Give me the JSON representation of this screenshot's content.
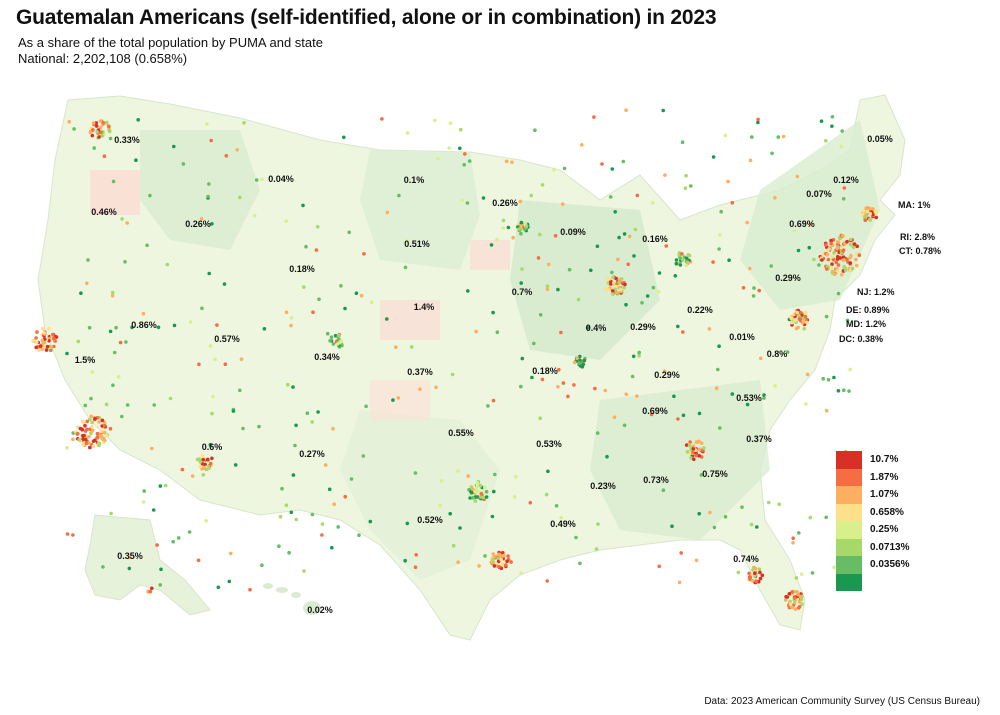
{
  "header": {
    "title": "Guatemalan Americans (self-identified, alone or in combination) in 2023",
    "subtitle": "As a share of the total population by PUMA and state",
    "national": "National: 2,202,108 (0.658%)"
  },
  "legend": {
    "items": [
      {
        "label": "10.7%",
        "color": "#d73027"
      },
      {
        "label": "1.87%",
        "color": "#f46d43"
      },
      {
        "label": "1.07%",
        "color": "#fdae61"
      },
      {
        "label": "0.658%",
        "color": "#fee08b"
      },
      {
        "label": "0.25%",
        "color": "#d9ef8b"
      },
      {
        "label": "0.0713%",
        "color": "#a6d96a"
      },
      {
        "label": "0.0356%",
        "color": "#66bd63"
      },
      {
        "label": "",
        "color": "#1a9850"
      }
    ]
  },
  "states": [
    {
      "abbr": "WA",
      "text": "0.33%"
    },
    {
      "abbr": "OR",
      "text": "0.46%"
    },
    {
      "abbr": "CA",
      "text": "1.5%"
    },
    {
      "abbr": "NV",
      "text": "0.86%"
    },
    {
      "abbr": "ID",
      "text": "0.26%"
    },
    {
      "abbr": "MT",
      "text": "0.04%"
    },
    {
      "abbr": "WY",
      "text": "0.18%"
    },
    {
      "abbr": "UT",
      "text": "0.57%"
    },
    {
      "abbr": "AZ",
      "text": "0.6%"
    },
    {
      "abbr": "CO",
      "text": "0.34%"
    },
    {
      "abbr": "NM",
      "text": "0.27%"
    },
    {
      "abbr": "ND",
      "text": "0.1%"
    },
    {
      "abbr": "SD",
      "text": "0.51%"
    },
    {
      "abbr": "NE",
      "text": "1.4%"
    },
    {
      "abbr": "KS",
      "text": "0.37%"
    },
    {
      "abbr": "OK",
      "text": "0.55%"
    },
    {
      "abbr": "TX",
      "text": "0.52%"
    },
    {
      "abbr": "MN",
      "text": "0.26%"
    },
    {
      "abbr": "IA",
      "text": "0.7%"
    },
    {
      "abbr": "MO",
      "text": "0.18%"
    },
    {
      "abbr": "AR",
      "text": "0.53%"
    },
    {
      "abbr": "LA",
      "text": "0.49%"
    },
    {
      "abbr": "WI",
      "text": "0.09%"
    },
    {
      "abbr": "IL",
      "text": "0.4%"
    },
    {
      "abbr": "MI",
      "text": "0.16%"
    },
    {
      "abbr": "IN",
      "text": "0.29%"
    },
    {
      "abbr": "OH",
      "text": "0.22%"
    },
    {
      "abbr": "KY",
      "text": "0.29%"
    },
    {
      "abbr": "TN",
      "text": "0.69%"
    },
    {
      "abbr": "MS",
      "text": "0.23%"
    },
    {
      "abbr": "AL",
      "text": "0.73%"
    },
    {
      "abbr": "GA",
      "text": "0.75%"
    },
    {
      "abbr": "FL",
      "text": "0.74%"
    },
    {
      "abbr": "SC",
      "text": "0.37%"
    },
    {
      "abbr": "NC",
      "text": "0.53%"
    },
    {
      "abbr": "VA",
      "text": "0.8%"
    },
    {
      "abbr": "WV",
      "text": "0.01%"
    },
    {
      "abbr": "PA",
      "text": "0.29%"
    },
    {
      "abbr": "NY",
      "text": "0.69%"
    },
    {
      "abbr": "VT",
      "text": "0.07%"
    },
    {
      "abbr": "NH",
      "text": "0.12%"
    },
    {
      "abbr": "ME",
      "text": "0.05%"
    },
    {
      "abbr": "AK",
      "text": "0.35%"
    },
    {
      "abbr": "HI",
      "text": "0.02%"
    },
    {
      "abbr": "MA",
      "text": "MA: 1%"
    },
    {
      "abbr": "RI",
      "text": "RI: 2.8%"
    },
    {
      "abbr": "CT",
      "text": "CT: 0.78%"
    },
    {
      "abbr": "NJ",
      "text": "NJ: 1.2%"
    },
    {
      "abbr": "DE",
      "text": "DE: 0.89%"
    },
    {
      "abbr": "MD",
      "text": "MD: 1.2%"
    },
    {
      "abbr": "DC",
      "text": "DC: 0.38%"
    }
  ],
  "footer": {
    "source": "Data: 2023 American Community Survey (US Census Bureau)"
  }
}
